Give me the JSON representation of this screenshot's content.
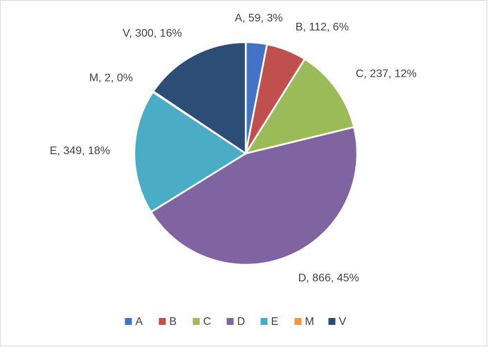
{
  "chart_data": {
    "type": "pie",
    "categories": [
      "A",
      "B",
      "C",
      "D",
      "E",
      "M",
      "V"
    ],
    "values": [
      59,
      112,
      237,
      866,
      349,
      2,
      300
    ],
    "value_labels": [
      "A, 59, 3%",
      "B, 112, 6%",
      "C, 237, 12%",
      "D, 866, 45%",
      "E, 349, 18%",
      "M, 2, 0%",
      "V, 300, 16%"
    ],
    "colors": [
      "#4472c4",
      "#c0504d",
      "#9bbb59",
      "#8064a2",
      "#4bacc6",
      "#f79646",
      "#2c4d75"
    ],
    "legend": "bottom"
  }
}
